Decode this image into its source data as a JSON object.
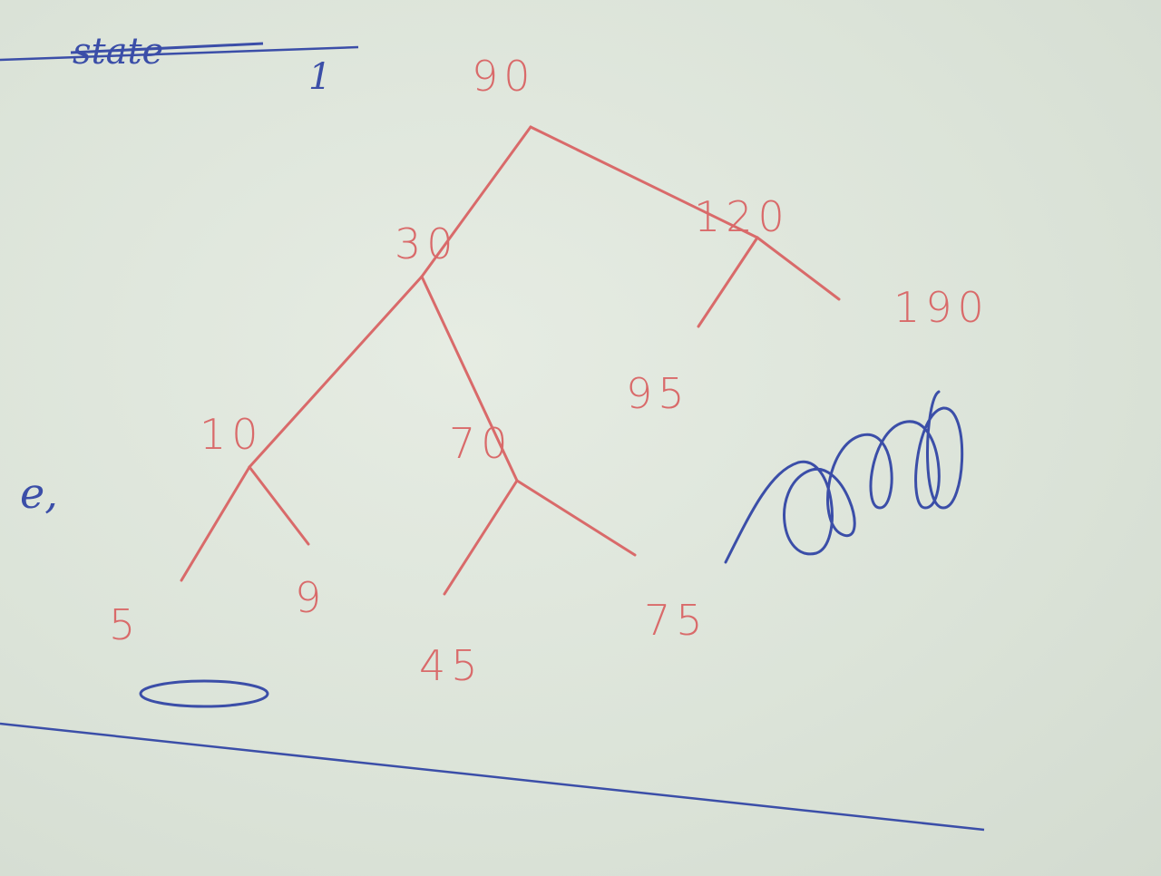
{
  "header": {
    "title": "state",
    "mark": "1"
  },
  "side_note": "e,",
  "colors": {
    "ink_red": "#d96a6a",
    "ink_blue": "#3b4ea8",
    "paper": "#dfe6dc"
  },
  "tree": {
    "nodes": [
      {
        "id": "n90",
        "label": "90"
      },
      {
        "id": "n30",
        "label": "30"
      },
      {
        "id": "n120",
        "label": "120"
      },
      {
        "id": "n10",
        "label": "10"
      },
      {
        "id": "n70",
        "label": "70"
      },
      {
        "id": "n95",
        "label": "95"
      },
      {
        "id": "n190",
        "label": "190"
      },
      {
        "id": "n5",
        "label": "5"
      },
      {
        "id": "n9",
        "label": "9"
      },
      {
        "id": "n45",
        "label": "45"
      },
      {
        "id": "n75",
        "label": "75"
      }
    ],
    "edges": [
      {
        "from": "n90",
        "to": "n30"
      },
      {
        "from": "n90",
        "to": "n120"
      },
      {
        "from": "n30",
        "to": "n10"
      },
      {
        "from": "n30",
        "to": "n70"
      },
      {
        "from": "n120",
        "to": "n95"
      },
      {
        "from": "n120",
        "to": "n190"
      },
      {
        "from": "n10",
        "to": "n5"
      },
      {
        "from": "n10",
        "to": "n9"
      },
      {
        "from": "n70",
        "to": "n45"
      },
      {
        "from": "n70",
        "to": "n75"
      }
    ]
  }
}
